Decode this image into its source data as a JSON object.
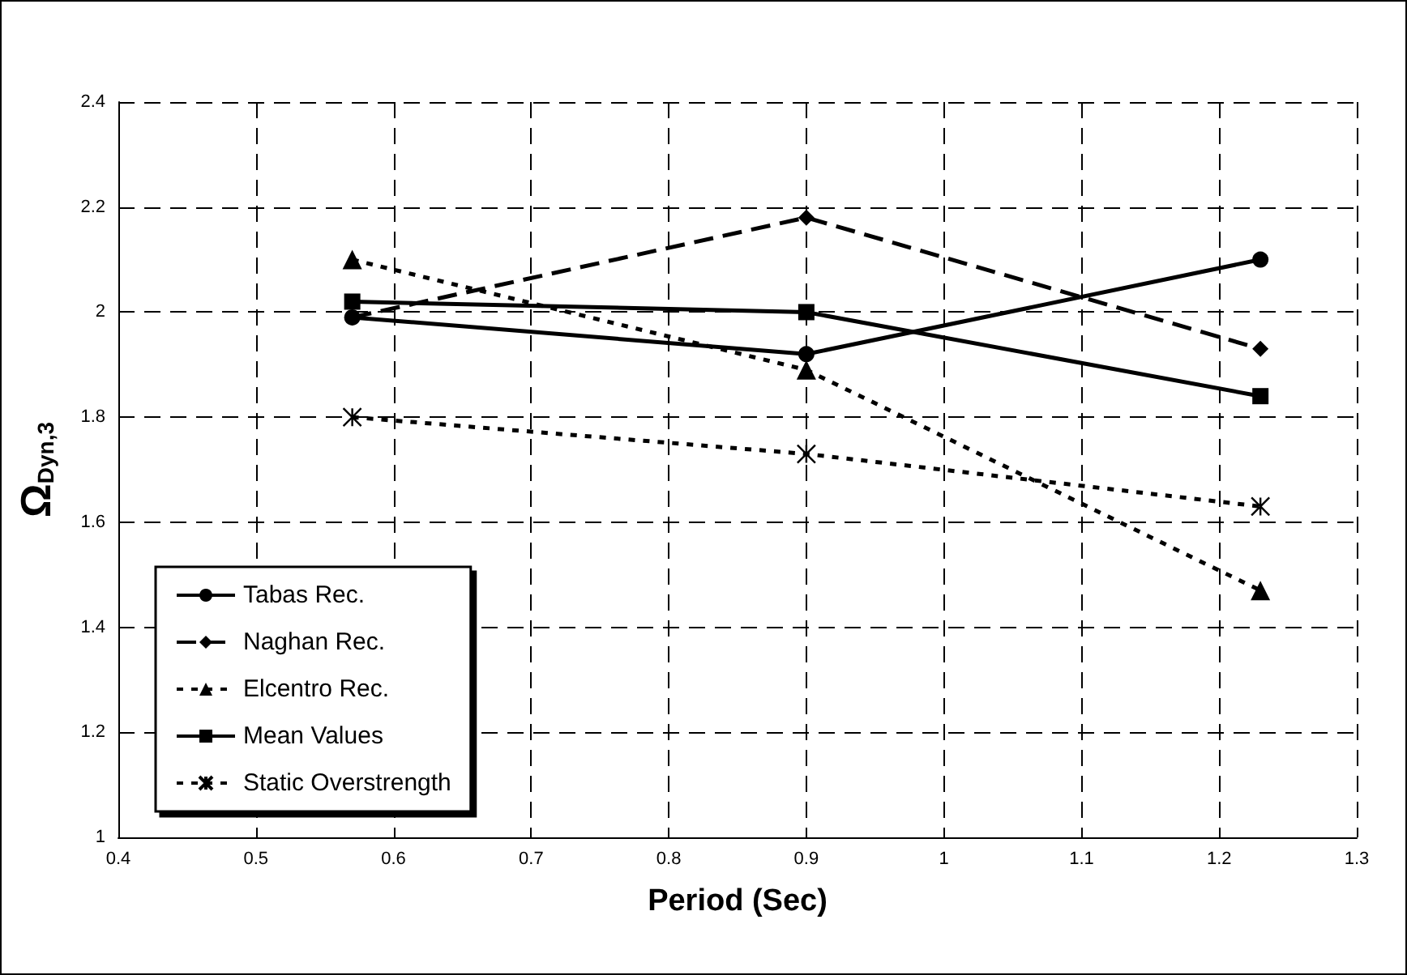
{
  "chart_data": {
    "type": "line",
    "xlabel": "Period (Sec)",
    "ylabel": "Ω$_{Dyn,3}$",
    "x": [
      0.57,
      0.9,
      1.23
    ],
    "series": [
      {
        "name": "Tabas Rec.",
        "color": "#000000",
        "values": [
          1.99,
          1.92,
          2.1
        ],
        "marker": "circle",
        "line_style": "solid"
      },
      {
        "name": "Naghan Rec.",
        "color": "#000000",
        "values": [
          1.99,
          2.18,
          1.93
        ],
        "marker": "diamond",
        "line_style": "dashed"
      },
      {
        "name": "Elcentro Rec.",
        "color": "#000000",
        "values": [
          2.1,
          1.89,
          1.47
        ],
        "marker": "triangle",
        "line_style": "dotted"
      },
      {
        "name": "Mean Values",
        "color": "#000000",
        "values": [
          2.02,
          2.0,
          1.84
        ],
        "marker": "square",
        "line_style": "solid"
      },
      {
        "name": "Static Overstrength",
        "color": "#000000",
        "values": [
          1.8,
          1.73,
          1.63
        ],
        "marker": "cross",
        "line_style": "dotted"
      }
    ],
    "xlim": [
      0.4,
      1.3
    ],
    "xticks": [
      0.4,
      0.5,
      0.6,
      0.7,
      0.8,
      0.9,
      1,
      1.1,
      1.2,
      1.3
    ],
    "ylim": [
      1,
      2.4
    ],
    "yticks": [
      1,
      1.2,
      1.4,
      1.6,
      1.8,
      2,
      2.2,
      2.4
    ],
    "grid": true,
    "legend": "bottom left"
  }
}
